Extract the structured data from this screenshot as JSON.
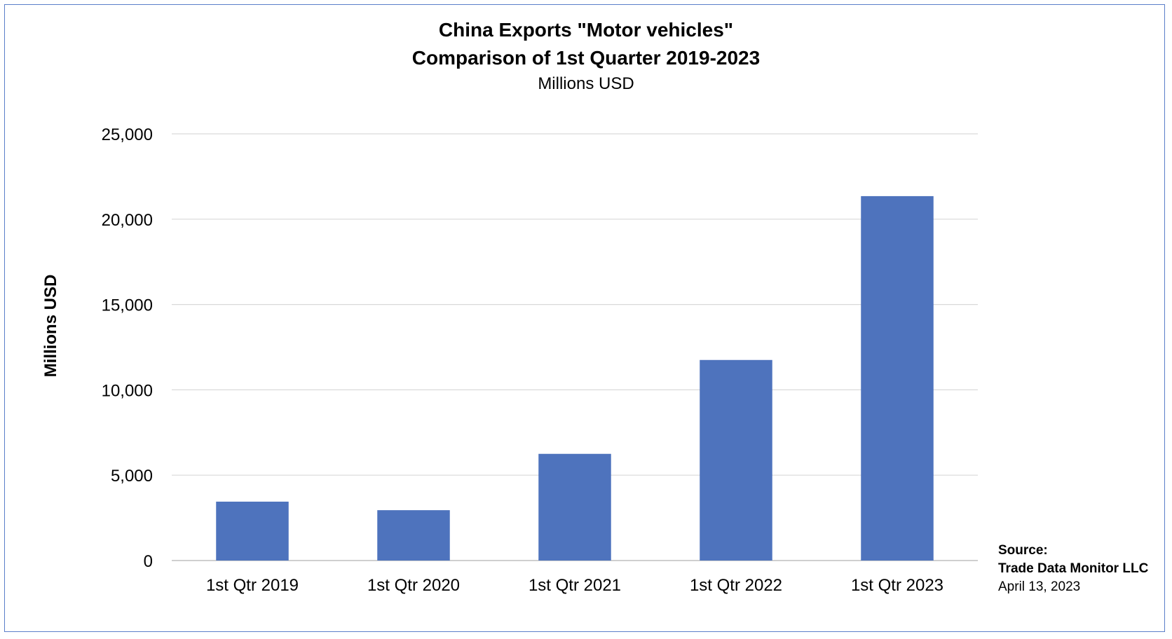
{
  "chart_data": {
    "type": "bar",
    "title": "China Exports \"Motor vehicles\"",
    "title_line2": "Comparison of 1st Quarter 2019-2023",
    "subtitle": "Millions USD",
    "ylabel": "Millions USD",
    "xlabel": "",
    "categories": [
      "1st Qtr 2019",
      "1st Qtr 2020",
      "1st Qtr 2021",
      "1st Qtr 2022",
      "1st Qtr 2023"
    ],
    "values": [
      3450,
      2950,
      6250,
      11750,
      21350
    ],
    "ylim": [
      0,
      25000
    ],
    "yticks": [
      0,
      5000,
      10000,
      15000,
      20000,
      25000
    ],
    "ytick_labels": [
      "0",
      "5,000",
      "10,000",
      "15,000",
      "20,000",
      "25,000"
    ],
    "bar_color": "#4e73bd",
    "grid": true,
    "legend": "none"
  },
  "source": {
    "label": "Source:",
    "name": "Trade Data Monitor LLC",
    "date": "April 13, 2023"
  }
}
